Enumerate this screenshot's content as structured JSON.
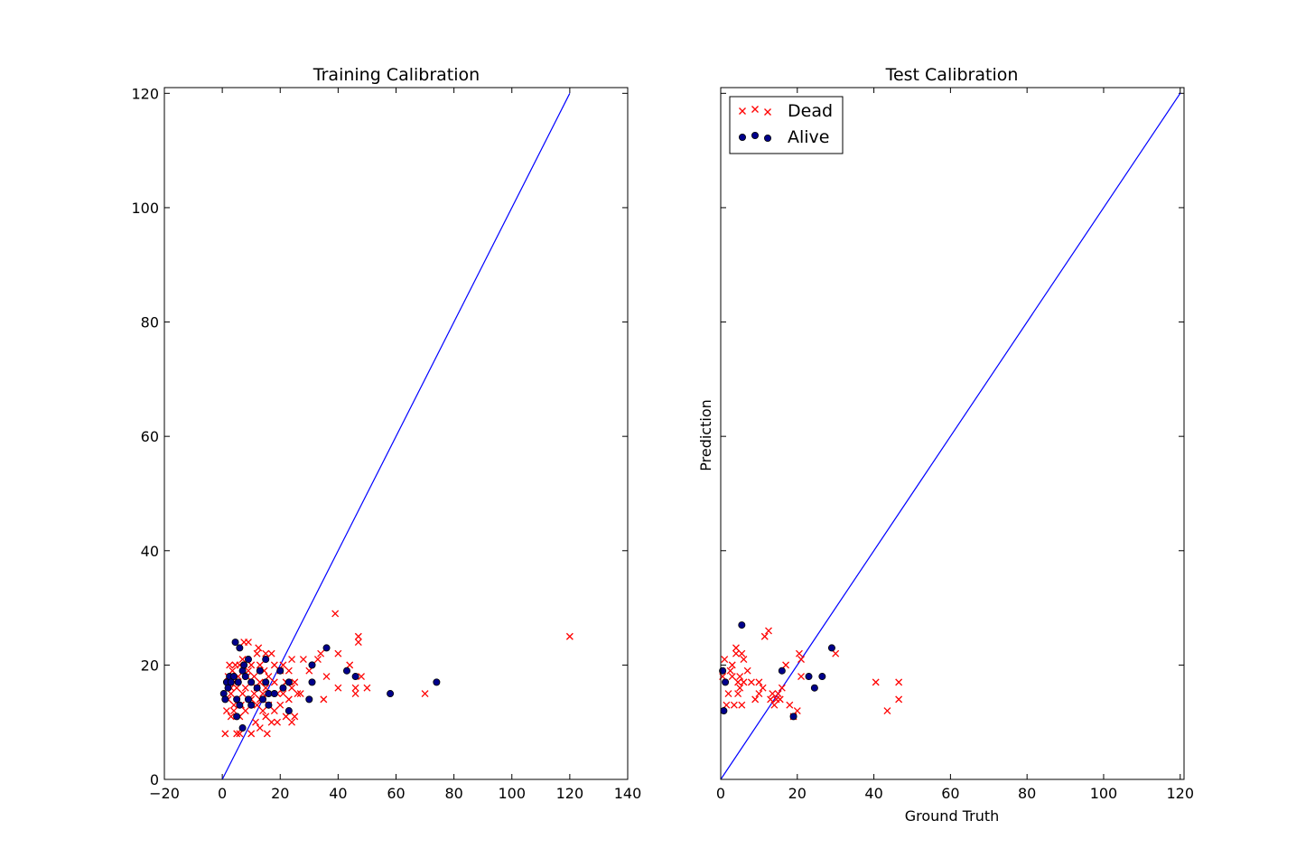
{
  "chart_data": [
    {
      "type": "scatter",
      "title": "Training Calibration",
      "xlabel": "",
      "ylabel": "",
      "xlim": [
        -20,
        140
      ],
      "ylim": [
        0,
        121
      ],
      "xticks": [
        "−20",
        "0",
        "20",
        "40",
        "60",
        "80",
        "100",
        "120",
        "140"
      ],
      "yticks": [
        "0",
        "20",
        "40",
        "60",
        "80",
        "100",
        "120"
      ],
      "grid": false,
      "reference_line": {
        "x": [
          0,
          120
        ],
        "y": [
          0,
          120
        ],
        "color": "#0000ff"
      },
      "series": [
        {
          "marker": "x",
          "color": "#ff0000",
          "points": [
            [
              1,
              8
            ],
            [
              1.5,
              12
            ],
            [
              2,
              14
            ],
            [
              2,
              18
            ],
            [
              2.5,
              20
            ],
            [
              3,
              11
            ],
            [
              3,
              15
            ],
            [
              3,
              16
            ],
            [
              3.5,
              19
            ],
            [
              4,
              12
            ],
            [
              4,
              13
            ],
            [
              4,
              17
            ],
            [
              4.5,
              20
            ],
            [
              5,
              8
            ],
            [
              5,
              16
            ],
            [
              5.5,
              18
            ],
            [
              6,
              8
            ],
            [
              6,
              11
            ],
            [
              6,
              20
            ],
            [
              6.5,
              13
            ],
            [
              7,
              15
            ],
            [
              7,
              21
            ],
            [
              7.5,
              24
            ],
            [
              8,
              12
            ],
            [
              8,
              16
            ],
            [
              8.5,
              18
            ],
            [
              9,
              19
            ],
            [
              9,
              24
            ],
            [
              10,
              8
            ],
            [
              10,
              14
            ],
            [
              10,
              20
            ],
            [
              11,
              15
            ],
            [
              11,
              18
            ],
            [
              11.5,
              10
            ],
            [
              12,
              13
            ],
            [
              12,
              16
            ],
            [
              12,
              22
            ],
            [
              12.5,
              23
            ],
            [
              13,
              9
            ],
            [
              13,
              14
            ],
            [
              13,
              17
            ],
            [
              13,
              20
            ],
            [
              14,
              12
            ],
            [
              14,
              15
            ],
            [
              14.5,
              19
            ],
            [
              15,
              11
            ],
            [
              15,
              16
            ],
            [
              15,
              22
            ],
            [
              15.5,
              8
            ],
            [
              16,
              13
            ],
            [
              16,
              18
            ],
            [
              17,
              10
            ],
            [
              17,
              15
            ],
            [
              17,
              22
            ],
            [
              18,
              12
            ],
            [
              18,
              17
            ],
            [
              18,
              20
            ],
            [
              19,
              10
            ],
            [
              19,
              15
            ],
            [
              20,
              13
            ],
            [
              20,
              19
            ],
            [
              21,
              15
            ],
            [
              21,
              20
            ],
            [
              22,
              11
            ],
            [
              22,
              17
            ],
            [
              23,
              14
            ],
            [
              23,
              19
            ],
            [
              24,
              10
            ],
            [
              24,
              16
            ],
            [
              24,
              21
            ],
            [
              25,
              11
            ],
            [
              25,
              17
            ],
            [
              26,
              15
            ],
            [
              27,
              15
            ],
            [
              28,
              21
            ],
            [
              30,
              19
            ],
            [
              33,
              21
            ],
            [
              34,
              22
            ],
            [
              35,
              14
            ],
            [
              36,
              18
            ],
            [
              39,
              29
            ],
            [
              40,
              22
            ],
            [
              40,
              16
            ],
            [
              44,
              20
            ],
            [
              46,
              15
            ],
            [
              46,
              16
            ],
            [
              47,
              24
            ],
            [
              47,
              25
            ],
            [
              48,
              18
            ],
            [
              50,
              16
            ],
            [
              70,
              15
            ],
            [
              120,
              25
            ]
          ]
        },
        {
          "marker": "o",
          "color": "#00008b",
          "points": [
            [
              0.5,
              15
            ],
            [
              1,
              14
            ],
            [
              1.5,
              17
            ],
            [
              2,
              16
            ],
            [
              2.5,
              18
            ],
            [
              3,
              17
            ],
            [
              4,
              18
            ],
            [
              4.5,
              24
            ],
            [
              5,
              11
            ],
            [
              5,
              14
            ],
            [
              5.5,
              17
            ],
            [
              6,
              23
            ],
            [
              6,
              13
            ],
            [
              7,
              9
            ],
            [
              7,
              19
            ],
            [
              7.5,
              20
            ],
            [
              8,
              18
            ],
            [
              9,
              14
            ],
            [
              9,
              21
            ],
            [
              10,
              13
            ],
            [
              10,
              17
            ],
            [
              12,
              16
            ],
            [
              13,
              19
            ],
            [
              14,
              14
            ],
            [
              15,
              21
            ],
            [
              15,
              17
            ],
            [
              16,
              13
            ],
            [
              16,
              15
            ],
            [
              18,
              15
            ],
            [
              20,
              19
            ],
            [
              21,
              16
            ],
            [
              23,
              12
            ],
            [
              23,
              17
            ],
            [
              30,
              14
            ],
            [
              31,
              20
            ],
            [
              31,
              17
            ],
            [
              36,
              23
            ],
            [
              43,
              19
            ],
            [
              46,
              18
            ],
            [
              58,
              15
            ],
            [
              74,
              17
            ]
          ]
        }
      ]
    },
    {
      "type": "scatter",
      "title": "Test Calibration",
      "xlabel": "Ground Truth",
      "ylabel": "Prediction",
      "xlim": [
        0,
        121
      ],
      "ylim": [
        0,
        121
      ],
      "xticks": [
        "0",
        "20",
        "40",
        "60",
        "80",
        "100",
        "120"
      ],
      "grid": false,
      "legend_position": "top-left",
      "reference_line": {
        "x": [
          0,
          120
        ],
        "y": [
          0,
          120
        ],
        "color": "#0000ff"
      },
      "series": [
        {
          "name": "Dead",
          "marker": "x",
          "color": "#ff0000",
          "points": [
            [
              0.5,
              18
            ],
            [
              1,
              21
            ],
            [
              1.5,
              13
            ],
            [
              2,
              15
            ],
            [
              2.5,
              19
            ],
            [
              3,
              20
            ],
            [
              3,
              18
            ],
            [
              3.5,
              13
            ],
            [
              4,
              23
            ],
            [
              4,
              22
            ],
            [
              4.5,
              17
            ],
            [
              4.5,
              15
            ],
            [
              5,
              16
            ],
            [
              5,
              18
            ],
            [
              5.5,
              22
            ],
            [
              5.5,
              13
            ],
            [
              6,
              17
            ],
            [
              6,
              21
            ],
            [
              7,
              19
            ],
            [
              8,
              17
            ],
            [
              9,
              14
            ],
            [
              10,
              15
            ],
            [
              10,
              17
            ],
            [
              11,
              16
            ],
            [
              11.5,
              25
            ],
            [
              12.5,
              26
            ],
            [
              13,
              14
            ],
            [
              13.5,
              15
            ],
            [
              14,
              13
            ],
            [
              14.5,
              14
            ],
            [
              15,
              15
            ],
            [
              15.5,
              14
            ],
            [
              16,
              16
            ],
            [
              17,
              20
            ],
            [
              18,
              13
            ],
            [
              19,
              11
            ],
            [
              20,
              12
            ],
            [
              20.5,
              22
            ],
            [
              21,
              21
            ],
            [
              21,
              18
            ],
            [
              30,
              22
            ],
            [
              40.5,
              17
            ],
            [
              43.5,
              12
            ],
            [
              46.5,
              17
            ],
            [
              46.5,
              14
            ]
          ]
        },
        {
          "name": "Alive",
          "marker": "o",
          "color": "#00008b",
          "points": [
            [
              0.5,
              19
            ],
            [
              0.8,
              12
            ],
            [
              1.2,
              17
            ],
            [
              5.5,
              27
            ],
            [
              16,
              19
            ],
            [
              19,
              11
            ],
            [
              23,
              18
            ],
            [
              24.5,
              16
            ],
            [
              26.5,
              18
            ],
            [
              29,
              23
            ]
          ]
        }
      ]
    }
  ]
}
